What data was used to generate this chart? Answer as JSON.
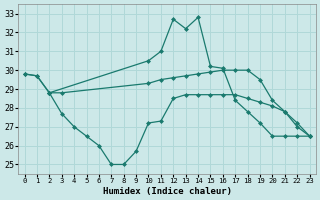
{
  "xlabel": "Humidex (Indice chaleur)",
  "background_color": "#cce8e8",
  "grid_color": "#b0d8d8",
  "line_color": "#1a7a6e",
  "xlim": [
    -0.5,
    23.5
  ],
  "ylim": [
    24.5,
    33.5
  ],
  "yticks": [
    25,
    26,
    27,
    28,
    29,
    30,
    31,
    32,
    33
  ],
  "xticks": [
    0,
    1,
    2,
    3,
    4,
    5,
    6,
    7,
    8,
    9,
    10,
    11,
    12,
    13,
    14,
    15,
    16,
    17,
    18,
    19,
    20,
    21,
    22,
    23
  ],
  "series": [
    {
      "x": [
        0,
        1,
        2,
        10,
        11,
        12,
        13,
        14,
        15,
        16,
        17,
        18,
        19,
        20,
        21,
        22,
        23
      ],
      "y": [
        29.8,
        29.7,
        28.8,
        30.5,
        31.0,
        32.7,
        32.2,
        32.8,
        30.2,
        30.1,
        28.4,
        27.8,
        27.2,
        26.5,
        26.5,
        26.5,
        26.5
      ]
    },
    {
      "x": [
        0,
        1,
        2,
        3,
        10,
        11,
        12,
        13,
        14,
        15,
        16,
        17,
        18,
        19,
        20,
        21,
        22,
        23
      ],
      "y": [
        29.8,
        29.7,
        28.8,
        28.8,
        29.3,
        29.5,
        29.6,
        29.7,
        29.8,
        29.9,
        30.0,
        30.0,
        30.0,
        29.5,
        28.4,
        27.8,
        27.2,
        26.5
      ]
    },
    {
      "x": [
        2,
        3,
        4,
        5,
        6,
        7,
        8,
        9,
        10,
        11,
        12,
        13,
        14,
        15,
        16,
        17,
        18,
        19,
        20,
        21,
        22,
        23
      ],
      "y": [
        28.8,
        27.7,
        27.0,
        26.5,
        26.0,
        25.0,
        25.0,
        25.7,
        27.2,
        27.3,
        28.5,
        28.7,
        28.7,
        28.7,
        28.7,
        28.7,
        28.5,
        28.3,
        28.1,
        27.8,
        27.0,
        26.5
      ]
    }
  ]
}
